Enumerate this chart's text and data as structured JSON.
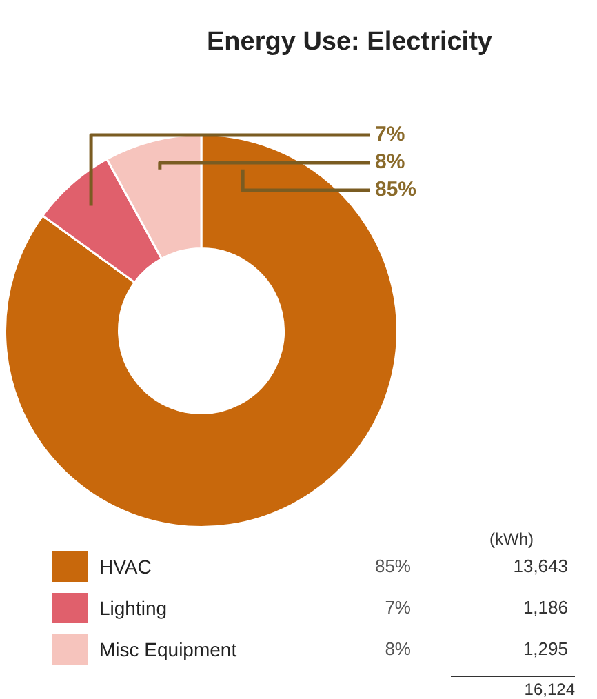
{
  "chart_data": {
    "type": "donut",
    "title": "Energy Use: Electricity",
    "categories": [
      "HVAC",
      "Lighting",
      "Misc Equipment"
    ],
    "values": [
      85,
      7,
      8
    ],
    "colors": [
      "#c8680c",
      "#e0606c",
      "#f6c4bd"
    ],
    "value_labels": [
      "85%",
      "7%",
      "8%"
    ],
    "legend": "bottom",
    "annotations": [
      "(kWh)",
      "13,643",
      "1,186",
      "1,295",
      "16,124"
    ]
  }
}
